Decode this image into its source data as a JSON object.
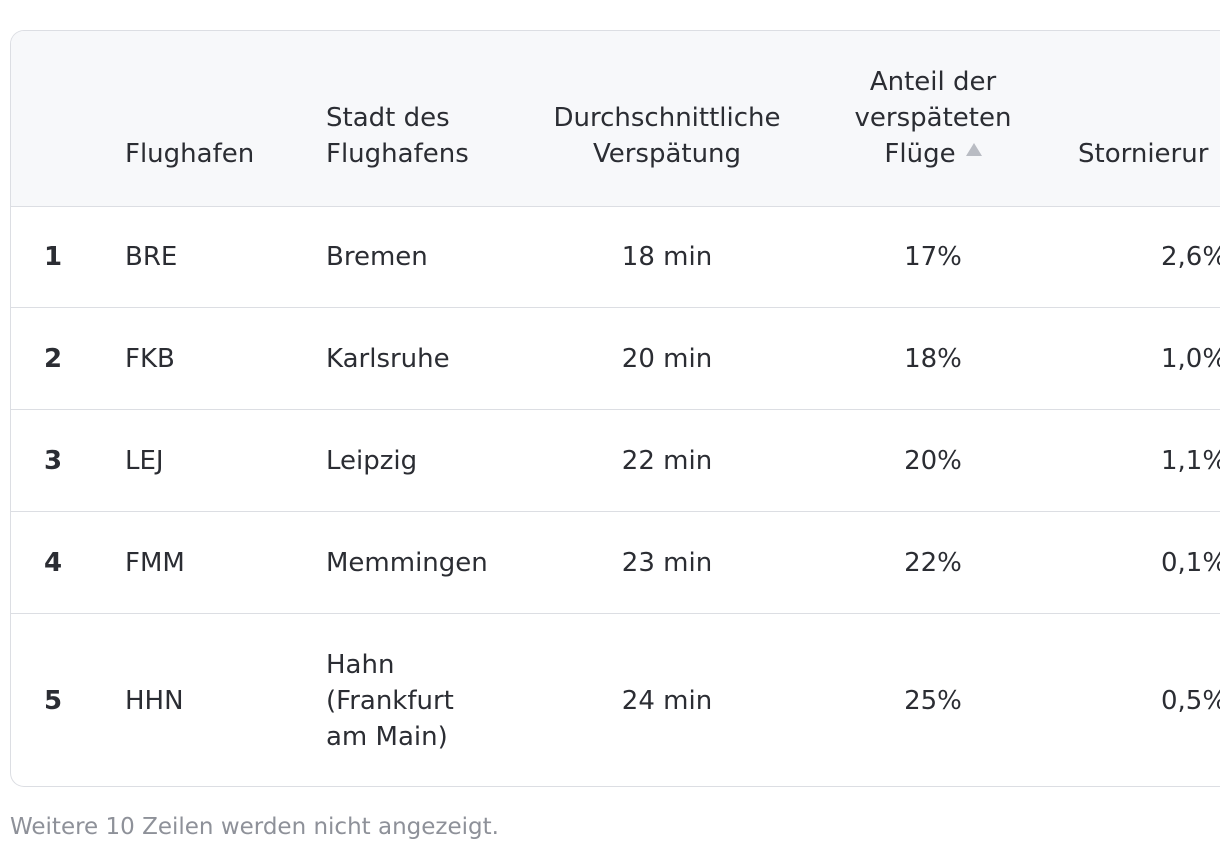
{
  "table": {
    "headers": {
      "rank": "",
      "airport": "Flughafen",
      "city": [
        "Stadt des",
        "Flughafens"
      ],
      "avg_delay": [
        "Durchschnittliche",
        "Verspätung"
      ],
      "delayed_share": [
        "Anteil der",
        "verspäteten",
        "Flüge"
      ],
      "cancellations": "Stornierur"
    },
    "sort": {
      "column": "delayed_share",
      "direction": "ascending",
      "icon": "sort-ascending-icon"
    },
    "rows": [
      {
        "rank": "1",
        "airport": "BRE",
        "city": [
          "Bremen"
        ],
        "avg_delay": "18 min",
        "delayed_share": "17%",
        "cancellations": "2,6%"
      },
      {
        "rank": "2",
        "airport": "FKB",
        "city": [
          "Karlsruhe"
        ],
        "avg_delay": "20 min",
        "delayed_share": "18%",
        "cancellations": "1,0%"
      },
      {
        "rank": "3",
        "airport": "LEJ",
        "city": [
          "Leipzig"
        ],
        "avg_delay": "22 min",
        "delayed_share": "20%",
        "cancellations": "1,1%"
      },
      {
        "rank": "4",
        "airport": "FMM",
        "city": [
          "Memmingen"
        ],
        "avg_delay": "23 min",
        "delayed_share": "22%",
        "cancellations": "0,1%"
      },
      {
        "rank": "5",
        "airport": "HHN",
        "city": [
          "Hahn",
          "(Frankfurt",
          "am Main)"
        ],
        "avg_delay": "24 min",
        "delayed_share": "25%",
        "cancellations": "0,5%"
      }
    ]
  },
  "footer": {
    "note": "Weitere 10 Zeilen werden nicht angezeigt."
  },
  "colors": {
    "header_bg": "#f7f8fa",
    "border": "#dcdee3",
    "text": "#2b2d33",
    "muted": "#8e9199",
    "sort_icon": "#b9bcc3"
  }
}
